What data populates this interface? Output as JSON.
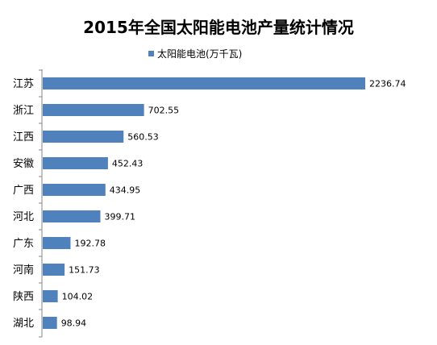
{
  "chart_data": {
    "type": "bar",
    "orientation": "horizontal",
    "title": "2015年全国太阳能电池产量统计情况",
    "legend": "太阳能电池(万千瓦)",
    "legend_position": "top",
    "categories": [
      "江苏",
      "浙江",
      "江西",
      "安徽",
      "广西",
      "河北",
      "广东",
      "河南",
      "陕西",
      "湖北"
    ],
    "series": [
      {
        "name": "太阳能电池(万千瓦)",
        "values": [
          2236.74,
          702.55,
          560.53,
          452.43,
          434.95,
          399.71,
          192.78,
          151.73,
          104.02,
          98.94
        ]
      }
    ],
    "value_labels": [
      "2236.74",
      "702.55",
      "560.53",
      "452.43",
      "434.95",
      "399.71",
      "192.78",
      "151.73",
      "104.02",
      "98.94"
    ],
    "bar_color": "#4F81BD",
    "grid": false
  }
}
